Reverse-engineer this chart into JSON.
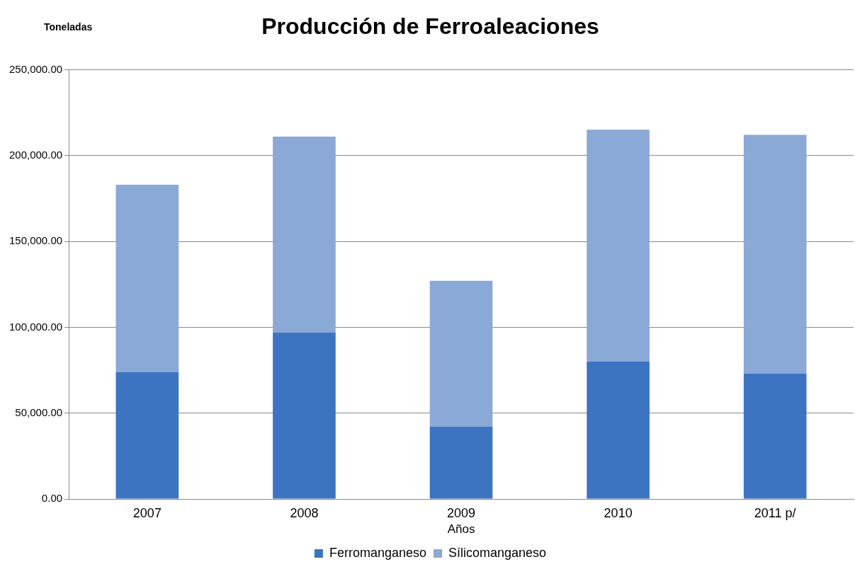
{
  "chart_data": {
    "type": "bar",
    "title": "Producción de Ferroaleaciones",
    "ylabel": "Toneladas",
    "xlabel": "Años",
    "categories": [
      "2007",
      "2008",
      "2009",
      "2010",
      "2011 p/"
    ],
    "series": [
      {
        "name": "Ferromanganeso",
        "color": "#3c74c2",
        "values": [
          74000,
          97000,
          42000,
          80000,
          73000
        ]
      },
      {
        "name": "Sílicomanganeso",
        "color": "#8ba9d6",
        "values": [
          109000,
          114000,
          85000,
          135000,
          139000
        ]
      }
    ],
    "stacked": true,
    "ylim": [
      0,
      250000
    ],
    "yticks": [
      {
        "value": 0,
        "label": "0.00"
      },
      {
        "value": 50000,
        "label": "50,000.00"
      },
      {
        "value": 100000,
        "label": "100,000.00"
      },
      {
        "value": 150000,
        "label": "150,000.00"
      },
      {
        "value": 200000,
        "label": "200,000.00"
      },
      {
        "value": 250000,
        "label": "250,000.00"
      }
    ],
    "grid": "y",
    "legend": "bottom"
  }
}
